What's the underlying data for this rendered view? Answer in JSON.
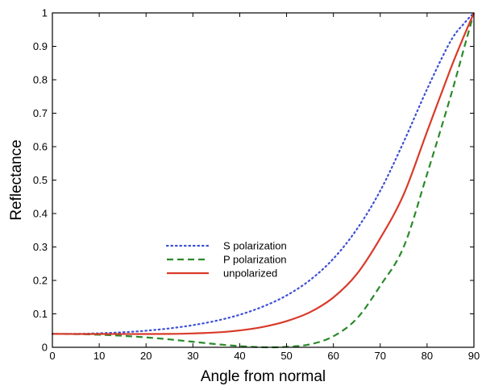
{
  "chart_data": {
    "type": "line",
    "title": "",
    "xlabel": "Angle from normal",
    "ylabel": "Reflectance",
    "xlim": [
      0,
      90
    ],
    "ylim": [
      0,
      1
    ],
    "xticks": [
      "0",
      "10",
      "20",
      "30",
      "40",
      "50",
      "60",
      "70",
      "80",
      "90"
    ],
    "yticks": [
      "0",
      "0.1",
      "0.2",
      "0.3",
      "0.4",
      "0.5",
      "0.6",
      "0.7",
      "0.8",
      "0.9",
      "1"
    ],
    "x": [
      0,
      5,
      10,
      15,
      20,
      25,
      30,
      35,
      40,
      45,
      50,
      55,
      60,
      65,
      70,
      75,
      80,
      85,
      88,
      90
    ],
    "series": [
      {
        "name": "S polarization",
        "color": "#3b4fd6",
        "style": "dotted",
        "values": [
          0.04,
          0.0401,
          0.0419,
          0.0448,
          0.0496,
          0.0565,
          0.0662,
          0.0794,
          0.0974,
          0.122,
          0.155,
          0.201,
          0.265,
          0.353,
          0.468,
          0.614,
          0.772,
          0.915,
          0.97,
          1.0
        ]
      },
      {
        "name": "P polarization",
        "color": "#2a8a2a",
        "style": "dashed",
        "values": [
          0.04,
          0.0395,
          0.0375,
          0.0343,
          0.0297,
          0.0236,
          0.0165,
          0.0094,
          0.0035,
          0.0002,
          0.0014,
          0.0089,
          0.0329,
          0.0859,
          0.184,
          0.3,
          0.518,
          0.749,
          0.9,
          1.0
        ]
      },
      {
        "name": "unpolarized",
        "color": "#d93a2a",
        "style": "solid",
        "values": [
          0.04,
          0.0398,
          0.0397,
          0.0396,
          0.0397,
          0.04,
          0.0414,
          0.0444,
          0.0505,
          0.0611,
          0.0782,
          0.105,
          0.149,
          0.219,
          0.326,
          0.457,
          0.645,
          0.832,
          0.935,
          1.0
        ]
      }
    ],
    "legend_position": "center-left",
    "grid": false
  }
}
